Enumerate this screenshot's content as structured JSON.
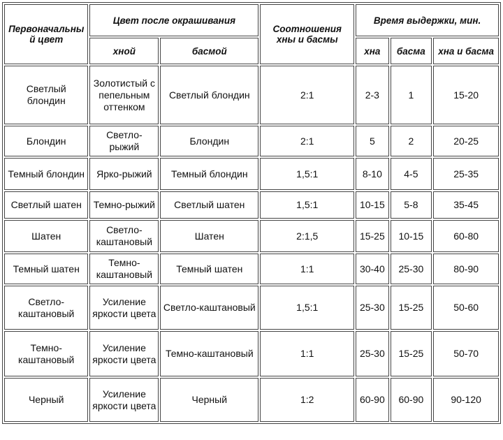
{
  "table": {
    "header": {
      "initial_color": "Первоначальный цвет",
      "color_after_dyeing": "Цвет после окрашивания",
      "with_henna": "хной",
      "with_basma": "басмой",
      "ratio": "Соотношения хны и басмы",
      "exposure_time": "Время выдержки, мин.",
      "henna": "хна",
      "basma": "басма",
      "henna_and_basma": "хна и басма"
    },
    "rows": [
      [
        "Светлый блондин",
        "Золотистый с пепельным оттенком",
        "Светлый блондин",
        "2:1",
        "2-3",
        "1",
        "15-20"
      ],
      [
        "Блондин",
        "Светло-рыжий",
        "Блондин",
        "2:1",
        "5",
        "2",
        "20-25"
      ],
      [
        "Темный блондин",
        "Ярко-рыжий",
        "Темный блондин",
        "1,5:1",
        "8-10",
        "4-5",
        "25-35"
      ],
      [
        "Светлый шатен",
        "Темно-рыжий",
        "Светлый шатен",
        "1,5:1",
        "10-15",
        "5-8",
        "35-45"
      ],
      [
        "Шатен",
        "Светло-каштановый",
        "Шатен",
        "2:1,5",
        "15-25",
        "10-15",
        "60-80"
      ],
      [
        "Темный шатен",
        "Темно-каштановый",
        "Темный шатен",
        "1:1",
        "30-40",
        "25-30",
        "80-90"
      ],
      [
        "Светло-каштановый",
        "Усиление яркости цвета",
        "Светло-каштановый",
        "1,5:1",
        "25-30",
        "15-25",
        "50-60"
      ],
      [
        "Темно-каштановый",
        "Усиление яркости цвета",
        "Темно-каштановый",
        "1:1",
        "25-30",
        "15-25",
        "50-70"
      ],
      [
        "Черный",
        "Усиление яркости цвета",
        "Черный",
        "1:2",
        "60-90",
        "60-90",
        "90-120"
      ]
    ]
  }
}
